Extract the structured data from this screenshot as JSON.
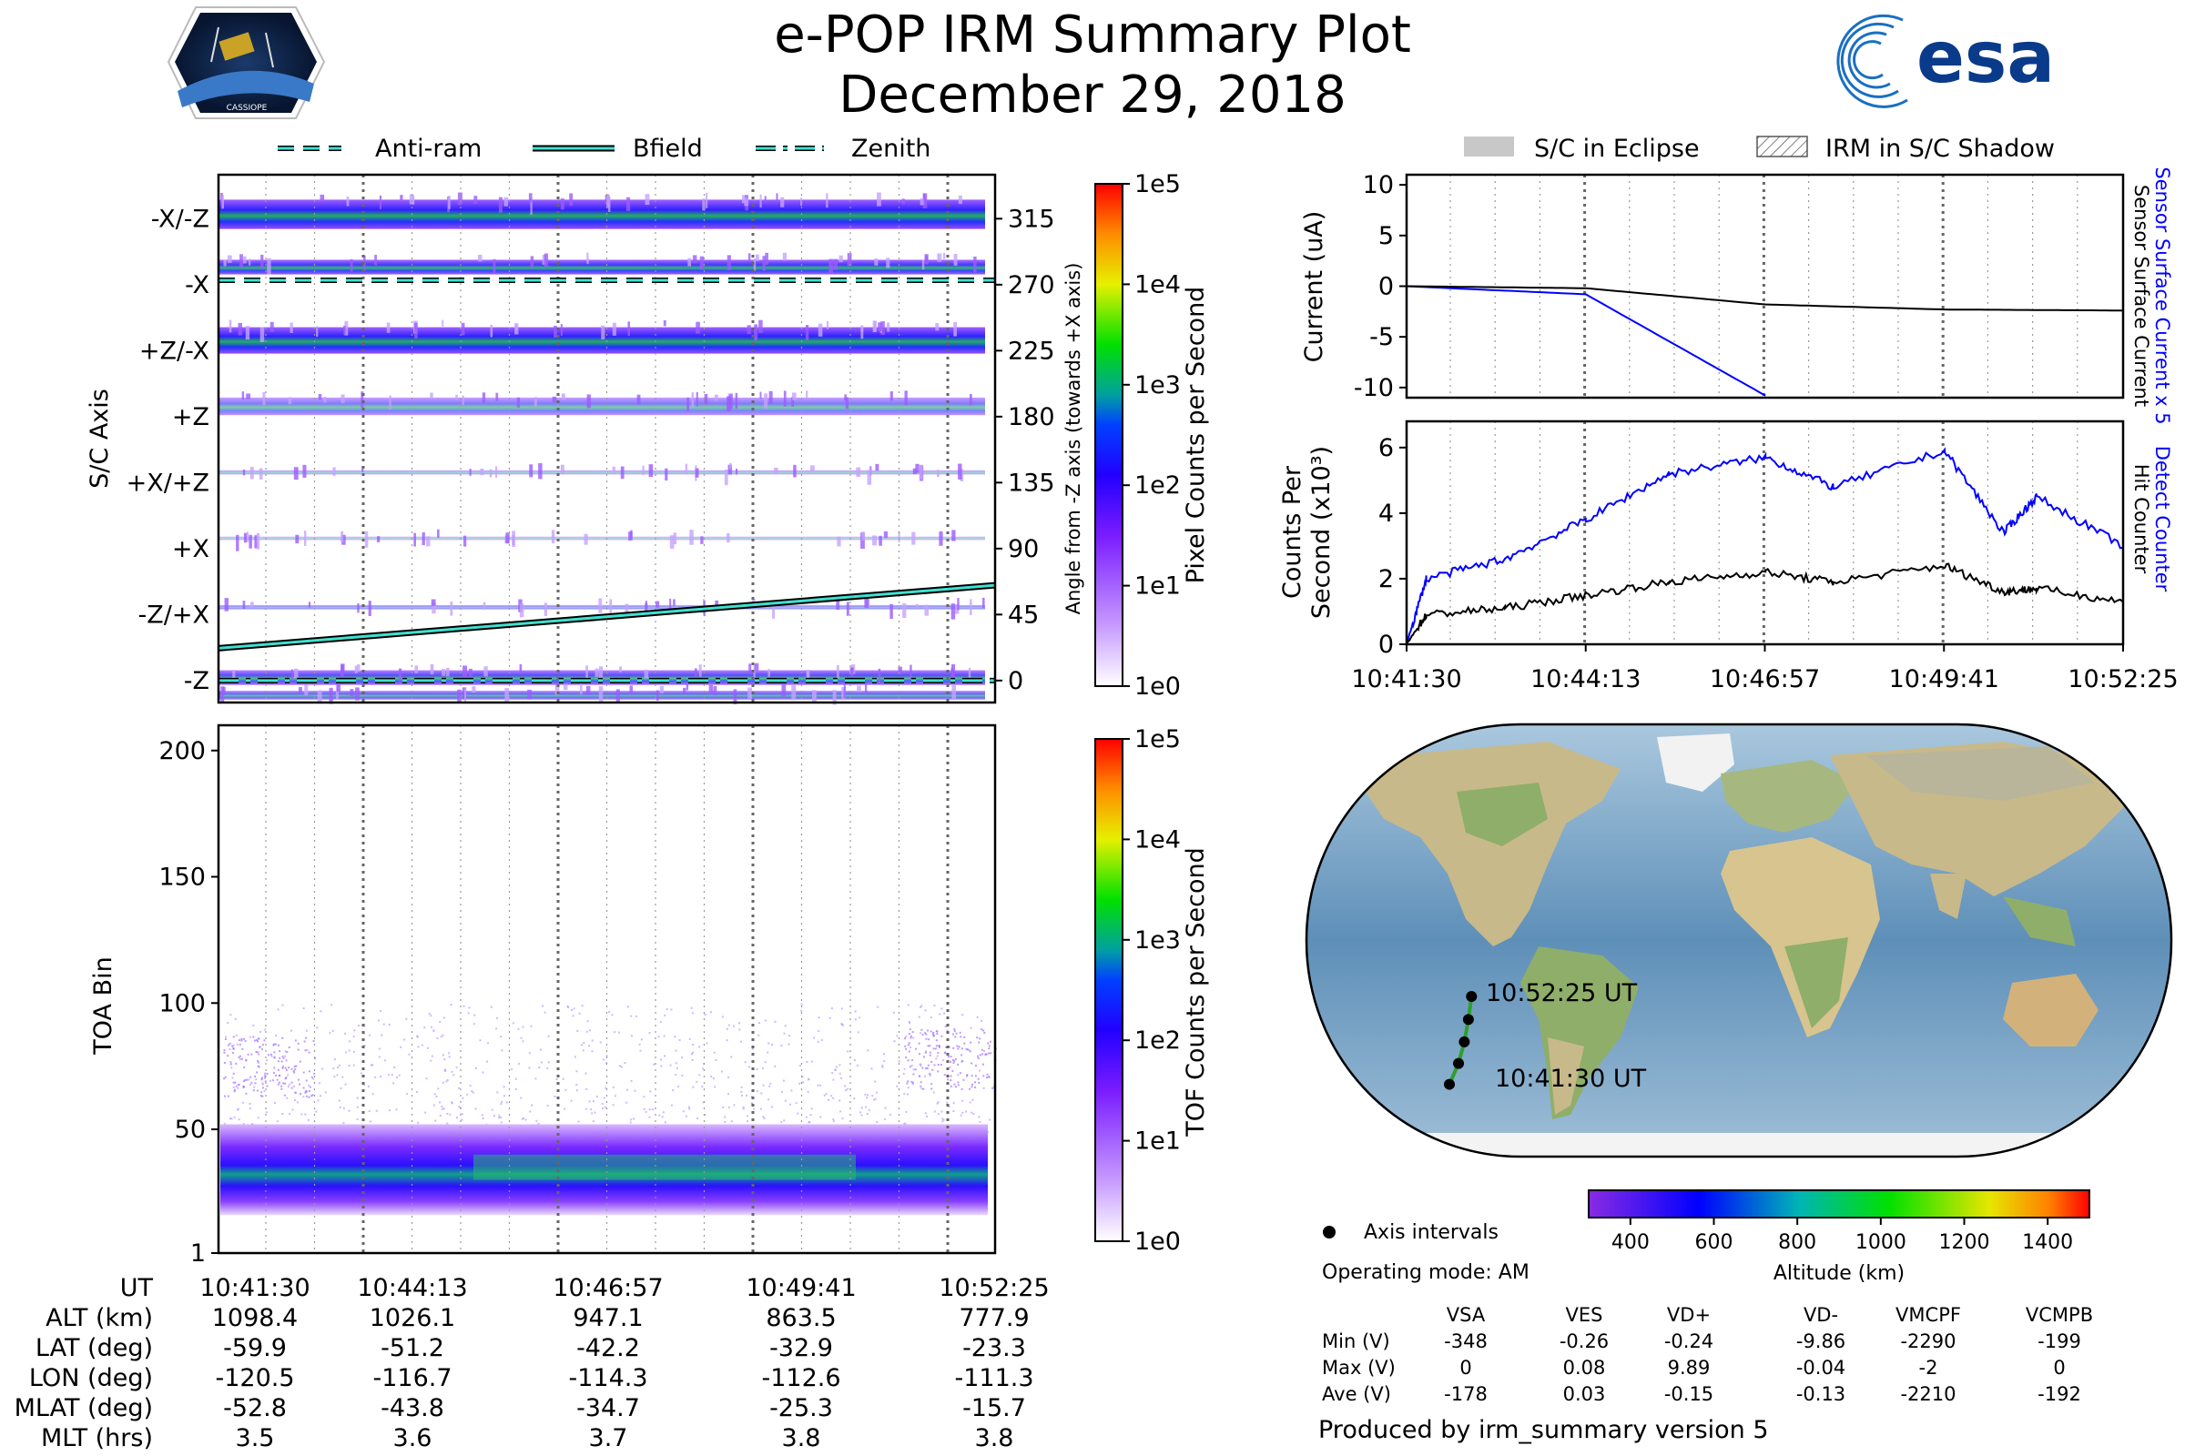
{
  "header": {
    "title": "e-POP IRM Summary Plot",
    "date": "December 29, 2018",
    "left_logo": {
      "icon": "cassiope-mission-patch-icon",
      "text": "CASSIOPE"
    },
    "right_logo": {
      "icon": "esa-logo-icon",
      "text": "esa"
    }
  },
  "colors": {
    "accent_cyan": "#40e0d0",
    "line_blue": "#0000ff",
    "line_black": "#000000",
    "map_track": "#2ca02c"
  },
  "top_legend": {
    "items": [
      {
        "label": "Anti-ram",
        "style": "dashed"
      },
      {
        "label": "Bfield",
        "style": "solid"
      },
      {
        "label": "Zenith",
        "style": "dashdot"
      }
    ]
  },
  "right_legend": {
    "items": [
      {
        "label": "S/C in Eclipse",
        "style": "gray-fill"
      },
      {
        "label": "IRM in S/C Shadow",
        "style": "hatched"
      }
    ]
  },
  "time_ticks": [
    "10:41:30",
    "10:44:13",
    "10:46:57",
    "10:49:41",
    "10:52:25"
  ],
  "chart_data": [
    {
      "id": "sc-axis-panel",
      "type": "heatmap",
      "ylabel": "S/C Axis",
      "y_categories": [
        "-X/-Z",
        "-X",
        "+Z/-X",
        "+Z",
        "+X/+Z",
        "+X",
        "-Z/+X",
        "-Z"
      ],
      "right_ylabel": "Angle from -Z axis (towards +X axis)",
      "right_ticks": [
        315,
        270,
        225,
        180,
        135,
        90,
        45,
        0
      ],
      "ylim": [
        -15,
        345
      ],
      "colorbar": {
        "label": "Pixel Counts per Second",
        "scale": "log",
        "ticks": [
          "1e0",
          "1e1",
          "1e2",
          "1e3",
          "1e4",
          "1e5"
        ]
      },
      "bfield_line": {
        "x": [
          "10:41:30",
          "10:52:25"
        ],
        "angle_deg": [
          22,
          65
        ]
      },
      "antiram_angle_deg": 273,
      "zenith_angle_deg": 0
    },
    {
      "id": "toa-panel",
      "type": "heatmap",
      "ylabel": "TOA Bin",
      "y_ticks": [
        1,
        50,
        100,
        150,
        200
      ],
      "ylim": [
        1,
        210
      ],
      "colorbar": {
        "label": "TOF Counts per Second",
        "scale": "log",
        "ticks": [
          "1e0",
          "1e1",
          "1e2",
          "1e3",
          "1e4",
          "1e5"
        ]
      }
    },
    {
      "id": "current-panel",
      "type": "line",
      "ylabel": "Current (uA)",
      "y_ticks": [
        10,
        5,
        0,
        -5,
        -10
      ],
      "ylim": [
        -11,
        11
      ],
      "x_minutes": [
        0,
        2.73,
        5.47,
        8.2,
        10.92
      ],
      "series": [
        {
          "name": "Sensor Surface Current x 5",
          "color": "blue",
          "values": [
            0,
            -0.8,
            -10.8,
            null,
            null
          ]
        },
        {
          "name": "Sensor Surface Current",
          "color": "black",
          "values": [
            0,
            -0.2,
            -1.8,
            -2.3,
            -2.4
          ]
        }
      ],
      "right_labels": {
        "blue": "Sensor Surface Current x 5",
        "black": "Sensor Surface Current"
      }
    },
    {
      "id": "counts-panel",
      "type": "line",
      "ylabel": "Counts Per Second (x10³)",
      "ylabel_line1": "Counts Per",
      "ylabel_line2": "Second (x10³)",
      "y_ticks": [
        0,
        2,
        4,
        6
      ],
      "ylim": [
        0,
        6.8
      ],
      "x_minutes": [
        0,
        0.3,
        1.5,
        2.73,
        4,
        5.47,
        6.5,
        8.2,
        9.1,
        9.6,
        10.92
      ],
      "series": [
        {
          "name": "Detect Counter",
          "color": "blue",
          "values": [
            0,
            2.0,
            2.6,
            3.8,
            5.2,
            5.7,
            4.8,
            5.9,
            3.4,
            4.5,
            3.0
          ]
        },
        {
          "name": "Hit Counter",
          "color": "black",
          "values": [
            0,
            0.9,
            1.1,
            1.5,
            1.9,
            2.2,
            1.9,
            2.4,
            1.6,
            1.7,
            1.3
          ]
        }
      ],
      "right_labels": {
        "blue": "Detect Counter",
        "black": "Hit Counter"
      }
    },
    {
      "id": "ground-track-map",
      "type": "scatter",
      "track_points": [
        {
          "time": "10:52:25 UT",
          "lat": -23.3,
          "lon": -111.3
        },
        {
          "time": "",
          "lat": -32.9,
          "lon": -112.6
        },
        {
          "time": "",
          "lat": -42.2,
          "lon": -114.3
        },
        {
          "time": "",
          "lat": -51.2,
          "lon": -116.7
        },
        {
          "time": "10:41:30 UT",
          "lat": -59.9,
          "lon": -120.5
        }
      ],
      "altitude_colorbar": {
        "label": "Altitude (km)",
        "ticks": [
          400,
          600,
          800,
          1000,
          1200,
          1400
        ],
        "range": [
          300,
          1500
        ]
      }
    }
  ],
  "ephemeris": {
    "rows": [
      {
        "label": "UT",
        "values": [
          "10:41:30",
          "10:44:13",
          "10:46:57",
          "10:49:41",
          "10:52:25"
        ]
      },
      {
        "label": "ALT (km)",
        "values": [
          "1098.4",
          "1026.1",
          "947.1",
          "863.5",
          "777.9"
        ]
      },
      {
        "label": "LAT (deg)",
        "values": [
          "-59.9",
          "-51.2",
          "-42.2",
          "-32.9",
          "-23.3"
        ]
      },
      {
        "label": "LON (deg)",
        "values": [
          "-120.5",
          "-116.7",
          "-114.3",
          "-112.6",
          "-111.3"
        ]
      },
      {
        "label": "MLAT (deg)",
        "values": [
          "-52.8",
          "-43.8",
          "-34.7",
          "-25.3",
          "-15.7"
        ]
      },
      {
        "label": "MLT (hrs)",
        "values": [
          "3.5",
          "3.6",
          "3.7",
          "3.8",
          "3.8"
        ]
      }
    ]
  },
  "info": {
    "axis_intervals": "Axis intervals",
    "operating_mode": "Operating mode: AM",
    "produced_by": "Produced by irm_summary version 5"
  },
  "voltage_table": {
    "columns": [
      "VSA",
      "VES",
      "VD+",
      "VD-",
      "VMCPF",
      "VCMPB"
    ],
    "rows": [
      {
        "label": "Min (V)",
        "values": [
          "-348",
          "-0.26",
          "-0.24",
          "-9.86",
          "-2290",
          "-199"
        ]
      },
      {
        "label": "Max (V)",
        "values": [
          "0",
          "0.08",
          "9.89",
          "-0.04",
          "-2",
          "0"
        ]
      },
      {
        "label": "Ave (V)",
        "values": [
          "-178",
          "0.03",
          "-0.15",
          "-0.13",
          "-2210",
          "-192"
        ]
      }
    ]
  }
}
